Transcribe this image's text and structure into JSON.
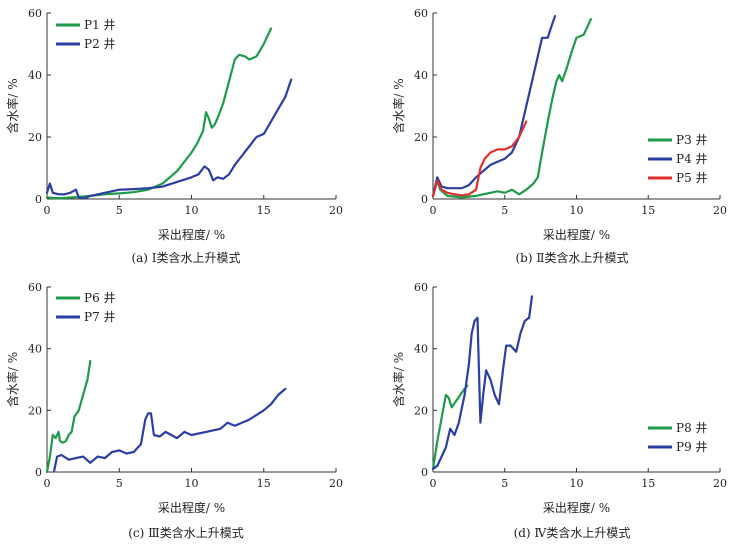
{
  "chart_data": [
    {
      "type": "line",
      "panel": "a",
      "caption": "(a) Ⅰ类含水上升模式",
      "xlabel": "采出程度/ %",
      "ylabel": "含水率/ %",
      "xlim": [
        0,
        20
      ],
      "ylim": [
        0,
        60
      ],
      "xticks": [
        "0",
        "5",
        "10",
        "15",
        "20"
      ],
      "yticks": [
        "0",
        "20",
        "40",
        "60"
      ],
      "legend_position": "top-left",
      "series": [
        {
          "name": "P1 井",
          "color": "#1e9b4a",
          "points": [
            [
              0,
              0.5
            ],
            [
              0.5,
              0.3
            ],
            [
              1,
              0.3
            ],
            [
              2,
              0.6
            ],
            [
              3,
              1.0
            ],
            [
              4,
              1.5
            ],
            [
              5,
              1.8
            ],
            [
              6,
              2.2
            ],
            [
              7,
              3
            ],
            [
              8,
              5
            ],
            [
              9,
              9
            ],
            [
              9.5,
              12
            ],
            [
              10,
              15
            ],
            [
              10.4,
              18
            ],
            [
              10.8,
              22
            ],
            [
              11.0,
              28
            ],
            [
              11.2,
              26
            ],
            [
              11.4,
              23
            ],
            [
              11.6,
              24
            ],
            [
              11.8,
              26
            ],
            [
              12.2,
              31
            ],
            [
              12.6,
              38
            ],
            [
              13,
              45
            ],
            [
              13.3,
              46.5
            ],
            [
              13.7,
              46
            ],
            [
              14,
              45
            ],
            [
              14.5,
              46
            ],
            [
              15,
              50
            ],
            [
              15.5,
              55
            ]
          ]
        },
        {
          "name": "P2 井",
          "color": "#2b3ea3",
          "points": [
            [
              0,
              2
            ],
            [
              0.2,
              5
            ],
            [
              0.4,
              2
            ],
            [
              0.8,
              1.5
            ],
            [
              1.2,
              1.5
            ],
            [
              1.6,
              2
            ],
            [
              2,
              3
            ],
            [
              2.2,
              0.5
            ],
            [
              2.6,
              0.2
            ],
            [
              3,
              1
            ],
            [
              4,
              2
            ],
            [
              5,
              3
            ],
            [
              6,
              3.2
            ],
            [
              7,
              3.5
            ],
            [
              8,
              4
            ],
            [
              9,
              5.5
            ],
            [
              10,
              7
            ],
            [
              10.5,
              8
            ],
            [
              10.9,
              10.5
            ],
            [
              11.2,
              9.5
            ],
            [
              11.5,
              6
            ],
            [
              11.8,
              7
            ],
            [
              12.2,
              6.5
            ],
            [
              12.6,
              8
            ],
            [
              13,
              11
            ],
            [
              13.5,
              14
            ],
            [
              14,
              17
            ],
            [
              14.5,
              20
            ],
            [
              15,
              21
            ],
            [
              15.5,
              25
            ],
            [
              16,
              29
            ],
            [
              16.5,
              33
            ],
            [
              16.9,
              38.5
            ]
          ]
        }
      ]
    },
    {
      "type": "line",
      "panel": "b",
      "caption": "(b) Ⅱ类含水上升模式",
      "xlabel": "采出程度/ %",
      "ylabel": "含水率/ %",
      "xlim": [
        0,
        20
      ],
      "ylim": [
        0,
        60
      ],
      "xticks": [
        "0",
        "5",
        "10",
        "15",
        "20"
      ],
      "yticks": [
        "0",
        "20",
        "40",
        "60"
      ],
      "legend_position": "bottom-right",
      "series": [
        {
          "name": "P3 井",
          "color": "#1e9b4a",
          "points": [
            [
              0,
              1
            ],
            [
              0.3,
              6
            ],
            [
              0.5,
              3
            ],
            [
              1,
              1
            ],
            [
              2,
              0.5
            ],
            [
              3,
              1
            ],
            [
              3.5,
              1.5
            ],
            [
              4,
              2
            ],
            [
              4.5,
              2.5
            ],
            [
              5,
              2
            ],
            [
              5.5,
              3
            ],
            [
              6,
              1.5
            ],
            [
              6.5,
              3
            ],
            [
              7,
              5
            ],
            [
              7.3,
              7
            ],
            [
              7.6,
              15
            ],
            [
              8,
              25
            ],
            [
              8.3,
              32
            ],
            [
              8.6,
              38
            ],
            [
              8.8,
              40
            ],
            [
              9,
              38
            ],
            [
              9.3,
              42
            ],
            [
              9.7,
              48
            ],
            [
              10,
              52
            ],
            [
              10.5,
              53
            ],
            [
              10.8,
              56
            ],
            [
              11,
              58
            ]
          ]
        },
        {
          "name": "P4 井",
          "color": "#2b3ea3",
          "points": [
            [
              0,
              1
            ],
            [
              0.3,
              7
            ],
            [
              0.6,
              4
            ],
            [
              1,
              3.5
            ],
            [
              2,
              3.5
            ],
            [
              2.5,
              4.5
            ],
            [
              3,
              7
            ],
            [
              3.5,
              9
            ],
            [
              4,
              11
            ],
            [
              4.5,
              12
            ],
            [
              5,
              13
            ],
            [
              5.5,
              15
            ],
            [
              6,
              20
            ],
            [
              6.5,
              30
            ],
            [
              7,
              40
            ],
            [
              7.3,
              46
            ],
            [
              7.6,
              52
            ],
            [
              8,
              52
            ],
            [
              8.2,
              55
            ],
            [
              8.5,
              59
            ]
          ]
        },
        {
          "name": "P5 井",
          "color": "#e0302d",
          "points": [
            [
              0,
              1
            ],
            [
              0.3,
              6
            ],
            [
              0.6,
              3
            ],
            [
              1,
              2
            ],
            [
              1.5,
              1.5
            ],
            [
              2,
              1.2
            ],
            [
              2.5,
              1.5
            ],
            [
              3,
              3
            ],
            [
              3.3,
              10
            ],
            [
              3.6,
              13
            ],
            [
              4,
              15
            ],
            [
              4.5,
              16
            ],
            [
              5,
              16
            ],
            [
              5.5,
              17
            ],
            [
              6,
              20
            ],
            [
              6.5,
              25
            ]
          ]
        }
      ]
    },
    {
      "type": "line",
      "panel": "c",
      "caption": "(c) Ⅲ类含水上升模式",
      "xlabel": "采出程度/ %",
      "ylabel": "含水率/ %",
      "xlim": [
        0,
        20
      ],
      "ylim": [
        0,
        60
      ],
      "xticks": [
        "0",
        "5",
        "10",
        "15",
        "20"
      ],
      "yticks": [
        "0",
        "20",
        "40",
        "60"
      ],
      "legend_position": "top-left",
      "series": [
        {
          "name": "P6 井",
          "color": "#1e9b4a",
          "points": [
            [
              0,
              0
            ],
            [
              0.2,
              5
            ],
            [
              0.4,
              12
            ],
            [
              0.6,
              11
            ],
            [
              0.8,
              13
            ],
            [
              0.9,
              10
            ],
            [
              1.1,
              9.5
            ],
            [
              1.3,
              10
            ],
            [
              1.5,
              12
            ],
            [
              1.7,
              13
            ],
            [
              1.9,
              18
            ],
            [
              2.2,
              20
            ],
            [
              2.5,
              25
            ],
            [
              2.8,
              30
            ],
            [
              3.0,
              36
            ]
          ]
        },
        {
          "name": "P7 井",
          "color": "#2b3ea3",
          "points": [
            [
              0.5,
              0.5
            ],
            [
              0.7,
              5
            ],
            [
              1,
              5.5
            ],
            [
              1.5,
              4
            ],
            [
              2,
              4.5
            ],
            [
              2.5,
              5
            ],
            [
              3,
              3
            ],
            [
              3.5,
              5
            ],
            [
              4,
              4.5
            ],
            [
              4.5,
              6.5
            ],
            [
              5,
              7
            ],
            [
              5.5,
              6
            ],
            [
              6,
              6.5
            ],
            [
              6.5,
              9
            ],
            [
              6.8,
              17
            ],
            [
              7,
              19
            ],
            [
              7.2,
              19
            ],
            [
              7.4,
              12
            ],
            [
              7.8,
              11.5
            ],
            [
              8.2,
              13
            ],
            [
              9,
              11
            ],
            [
              9.5,
              13
            ],
            [
              10,
              12
            ],
            [
              11,
              13
            ],
            [
              12,
              14
            ],
            [
              12.5,
              16
            ],
            [
              13,
              15
            ],
            [
              14,
              17
            ],
            [
              15,
              20
            ],
            [
              15.5,
              22
            ],
            [
              16,
              25
            ],
            [
              16.5,
              27
            ]
          ]
        }
      ]
    },
    {
      "type": "line",
      "panel": "d",
      "caption": "(d) Ⅳ类含水上升模式",
      "xlabel": "采出程度/ %",
      "ylabel": "含水率/ %",
      "xlim": [
        0,
        20
      ],
      "ylim": [
        0,
        60
      ],
      "xticks": [
        "0",
        "5",
        "10",
        "15",
        "20"
      ],
      "yticks": [
        "0",
        "20",
        "40",
        "60"
      ],
      "legend_position": "bottom-right",
      "series": [
        {
          "name": "P8 井",
          "color": "#1e9b4a",
          "points": [
            [
              0,
              1
            ],
            [
              0.3,
              10
            ],
            [
              0.5,
              15
            ],
            [
              0.7,
              20
            ],
            [
              0.9,
              25
            ],
            [
              1.1,
              24
            ],
            [
              1.3,
              21
            ],
            [
              1.6,
              23
            ],
            [
              1.9,
              25
            ],
            [
              2.2,
              27
            ],
            [
              2.4,
              28
            ]
          ]
        },
        {
          "name": "P9 井",
          "color": "#2b3ea3",
          "points": [
            [
              0,
              1
            ],
            [
              0.3,
              2
            ],
            [
              0.6,
              5
            ],
            [
              0.9,
              8
            ],
            [
              1.2,
              14
            ],
            [
              1.5,
              12
            ],
            [
              1.8,
              16
            ],
            [
              2.2,
              25
            ],
            [
              2.5,
              35
            ],
            [
              2.7,
              45
            ],
            [
              2.9,
              49
            ],
            [
              3.1,
              50
            ],
            [
              3.3,
              16
            ],
            [
              3.5,
              25
            ],
            [
              3.7,
              33
            ],
            [
              4,
              30
            ],
            [
              4.3,
              25
            ],
            [
              4.6,
              22
            ],
            [
              4.9,
              34
            ],
            [
              5.1,
              41
            ],
            [
              5.4,
              41
            ],
            [
              5.8,
              39
            ],
            [
              6.1,
              45
            ],
            [
              6.4,
              49
            ],
            [
              6.7,
              50
            ],
            [
              6.9,
              57
            ]
          ]
        }
      ]
    }
  ]
}
